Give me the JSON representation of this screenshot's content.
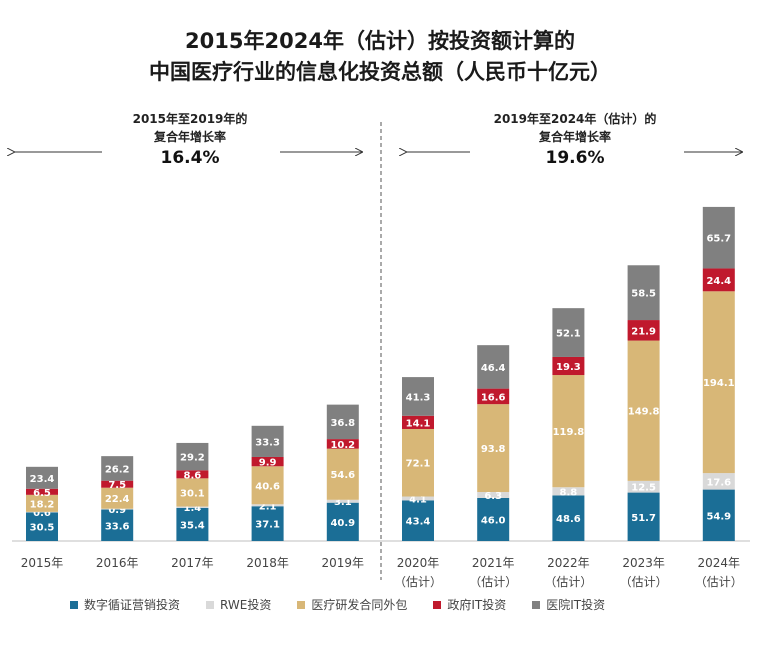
{
  "title_line1": "2015年2024年（估计）按投资额计算的",
  "title_line2": "中国医疗行业的信息化投资总额（人民币十亿元）",
  "cagr_left": {
    "line1": "2015年至2019年的",
    "line2": "复合年增长率",
    "value": "16.4%"
  },
  "cagr_right": {
    "line1": "2019年至2024年（估计）的",
    "line2": "复合年增长率",
    "value": "19.6%"
  },
  "chart_data": {
    "type": "bar",
    "stacked": true,
    "categories": [
      "2015年",
      "2016年",
      "2017年",
      "2018年",
      "2019年",
      "2020年",
      "2021年",
      "2022年",
      "2023年",
      "2024年"
    ],
    "category_sublabels": [
      "",
      "",
      "",
      "",
      "",
      "（估计）",
      "（估计）",
      "（估计）",
      "（估计）",
      "（估计）"
    ],
    "series": [
      {
        "name": "数字循证营销投资",
        "color": "#1b6e96",
        "values": [
          30.5,
          33.6,
          35.4,
          37.1,
          40.9,
          43.4,
          46.0,
          48.6,
          51.7,
          54.9
        ]
      },
      {
        "name": "RWE投资",
        "color": "#d9d9d9",
        "values": [
          0.6,
          0.9,
          1.4,
          2.1,
          3.1,
          4.1,
          6.3,
          8.8,
          12.5,
          17.6
        ]
      },
      {
        "name": "医疗研发合同外包",
        "color": "#d8b777",
        "values": [
          18.2,
          22.4,
          30.1,
          40.6,
          54.6,
          72.1,
          93.8,
          119.8,
          149.8,
          194.1
        ]
      },
      {
        "name": "政府IT投资",
        "color": "#c0192d",
        "values": [
          6.5,
          7.5,
          8.6,
          9.9,
          10.2,
          14.1,
          16.6,
          19.3,
          21.9,
          24.4
        ]
      },
      {
        "name": "医院IT投资",
        "color": "#808080",
        "values": [
          23.4,
          26.2,
          29.2,
          33.3,
          36.8,
          41.3,
          46.4,
          52.1,
          58.5,
          65.7
        ]
      }
    ],
    "divider_between": [
      "2019年",
      "2020年"
    ],
    "legend_position": "bottom"
  }
}
